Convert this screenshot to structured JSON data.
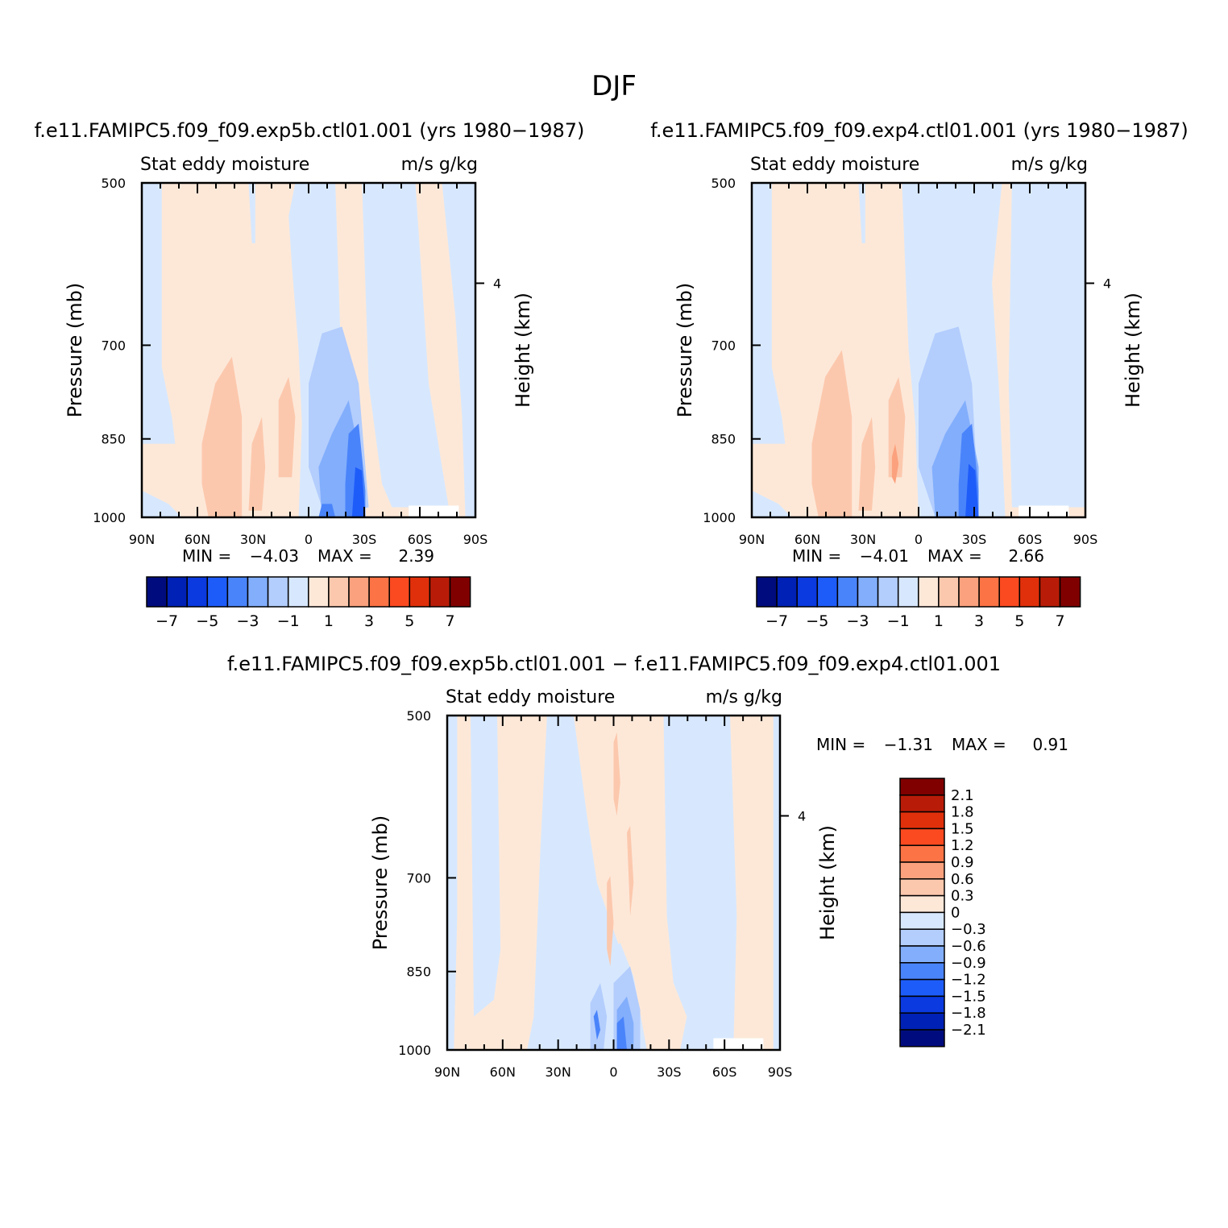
{
  "figure_title": "DJF",
  "palette": {
    "blues": [
      "#000c7d",
      "#0021b5",
      "#0a3ae0",
      "#1e5cfa",
      "#4a84fb",
      "#82aefc",
      "#b3cdfd",
      "#d7e8fe"
    ],
    "reds": [
      "#fde8d8",
      "#fcc8ad",
      "#fba17d",
      "#fc7345",
      "#fb4a20",
      "#e0300b",
      "#b81c08",
      "#800000"
    ]
  },
  "chart_data": [
    {
      "type": "contour",
      "title": "f.e11.FAMIPC5.f09_f09.exp5b.ctl01.001 (yrs 1980−1987)",
      "subtitle_left": "Stat eddy moisture",
      "subtitle_right": "m/s g/kg",
      "ylabel": "Pressure (mb)",
      "y2label": "Height (km)",
      "x_ticks": [
        "90N",
        "60N",
        "30N",
        "0",
        "30S",
        "60S",
        "90S"
      ],
      "y_ticks": [
        "500",
        "700",
        "850",
        "1000"
      ],
      "y2_ticks": [
        "4"
      ],
      "min_label": "MIN =",
      "min_value": "−4.03",
      "max_label": "MAX =",
      "max_value": "2.39",
      "colorbar_labels": [
        "−7",
        "−5",
        "−3",
        "−1",
        "1",
        "3",
        "5",
        "7"
      ]
    },
    {
      "type": "contour",
      "title": "f.e11.FAMIPC5.f09_f09.exp4.ctl01.001 (yrs 1980−1987)",
      "subtitle_left": "Stat eddy moisture",
      "subtitle_right": "m/s g/kg",
      "ylabel": "Pressure (mb)",
      "y2label": "Height (km)",
      "x_ticks": [
        "90N",
        "60N",
        "30N",
        "0",
        "30S",
        "60S",
        "90S"
      ],
      "y_ticks": [
        "500",
        "700",
        "850",
        "1000"
      ],
      "y2_ticks": [
        "4"
      ],
      "min_label": "MIN =",
      "min_value": "−4.01",
      "max_label": "MAX =",
      "max_value": "2.66",
      "colorbar_labels": [
        "−7",
        "−5",
        "−3",
        "−1",
        "1",
        "3",
        "5",
        "7"
      ]
    },
    {
      "type": "contour",
      "title": "f.e11.FAMIPC5.f09_f09.exp5b.ctl01.001 − f.e11.FAMIPC5.f09_f09.exp4.ctl01.001",
      "subtitle_left": "Stat eddy moisture",
      "subtitle_right": "m/s g/kg",
      "ylabel": "Pressure (mb)",
      "y2label": "Height (km)",
      "x_ticks": [
        "90N",
        "60N",
        "30N",
        "0",
        "30S",
        "60S",
        "90S"
      ],
      "y_ticks": [
        "500",
        "700",
        "850",
        "1000"
      ],
      "y2_ticks": [
        "4"
      ],
      "min_label": "MIN =",
      "min_value": "−1.31",
      "max_label": "MAX =",
      "max_value": "0.91",
      "colorbar_labels": [
        "2.1",
        "1.8",
        "1.5",
        "1.2",
        "0.9",
        "0.6",
        "0.3",
        "0",
        "−0.3",
        "−0.6",
        "−0.9",
        "−1.2",
        "−1.5",
        "−1.8",
        "−2.1"
      ]
    }
  ]
}
